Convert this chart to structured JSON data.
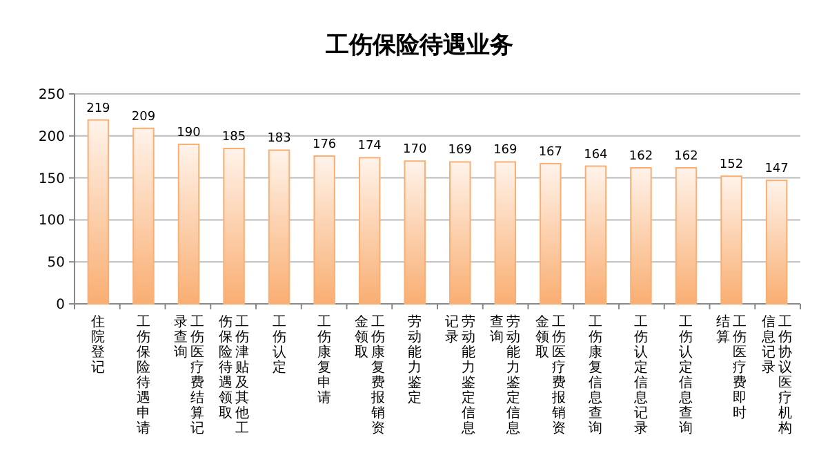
{
  "chart_data": {
    "type": "bar",
    "title": "工伤保险待遇业务",
    "categories": [
      "住院登记",
      "工伤保险待遇申请",
      "工伤医疗费结算记录查询",
      "工伤津贴及其他工伤保险待遇领取",
      "工伤认定",
      "工伤康复申请",
      "工伤康复费报销资金领取",
      "劳动能力鉴定",
      "劳动能力鉴定信息记录",
      "劳动能力鉴定信息查询",
      "工伤医疗费报销资金领取",
      "工伤康复信息查询",
      "工伤认定信息记录",
      "工伤认定信息查询",
      "工伤医疗费即时结算",
      "工伤协议医疗机构信息记录"
    ],
    "values": [
      219,
      209,
      190,
      185,
      183,
      176,
      174,
      170,
      169,
      169,
      167,
      164,
      162,
      162,
      152,
      147
    ],
    "color": "#f9ae72",
    "ylim": [
      0,
      250
    ],
    "yticks": [
      0,
      50,
      100,
      150,
      200,
      250
    ],
    "grid": "y",
    "data_labels": true
  }
}
